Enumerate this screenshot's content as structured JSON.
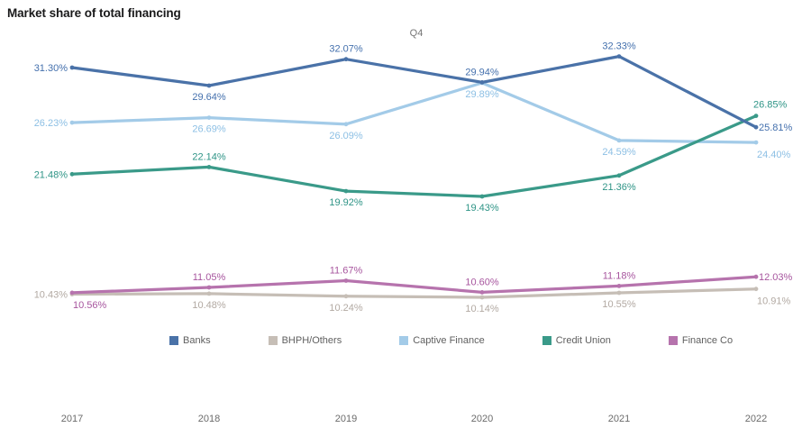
{
  "chart_data": {
    "type": "line",
    "title": "Market share of total financing",
    "subtitle": "Q4",
    "categories": [
      "2017",
      "2018",
      "2019",
      "2020",
      "2021",
      "2022"
    ],
    "ylim": [
      8,
      36
    ],
    "grid": false,
    "legend_position": "bottom",
    "axis_text_color": "#6b6b6b",
    "series": [
      {
        "name": "Banks",
        "color": "#4a72a8",
        "label_color": "#4470ad",
        "values": [
          31.3,
          29.64,
          32.07,
          29.94,
          32.33,
          25.81
        ],
        "labels": [
          "31.30%",
          "29.64%",
          "32.07%",
          "29.94%",
          "32.33%",
          "25.81%"
        ],
        "label_pos": [
          "left",
          "below",
          "above",
          "above",
          "above",
          "right"
        ]
      },
      {
        "name": "BHPH/Others",
        "color": "#c6beb6",
        "label_color": "#b2a9a2",
        "values": [
          10.43,
          10.48,
          10.24,
          10.14,
          10.55,
          10.91
        ],
        "labels": [
          "10.43%",
          "10.48%",
          "10.24%",
          "10.14%",
          "10.55%",
          "10.91%"
        ],
        "label_pos": [
          "left",
          "below",
          "below",
          "below",
          "below",
          "below-right"
        ]
      },
      {
        "name": "Captive Finance",
        "color": "#a3cbe8",
        "label_color": "#8cbfe4",
        "values": [
          26.23,
          26.69,
          26.09,
          29.89,
          24.59,
          24.4
        ],
        "labels": [
          "26.23%",
          "26.69%",
          "26.09%",
          "29.89%",
          "24.59%",
          "24.40%"
        ],
        "label_pos": [
          "left",
          "below",
          "below",
          "below",
          "below",
          "below-right"
        ]
      },
      {
        "name": "Credit Union",
        "color": "#3a9a89",
        "label_color": "#2e9486",
        "values": [
          21.48,
          22.14,
          19.92,
          19.43,
          21.36,
          26.85
        ],
        "labels": [
          "21.48%",
          "22.14%",
          "19.92%",
          "19.43%",
          "21.36%",
          "26.85%"
        ],
        "label_pos": [
          "left",
          "above",
          "below",
          "below",
          "below",
          "above-right"
        ]
      },
      {
        "name": "Finance Co",
        "color": "#b673ad",
        "label_color": "#a7559e",
        "values": [
          10.56,
          11.05,
          11.67,
          10.6,
          11.18,
          12.03
        ],
        "labels": [
          "10.56%",
          "11.05%",
          "11.67%",
          "10.60%",
          "11.18%",
          "12.03%"
        ],
        "label_pos": [
          "below-right",
          "above",
          "above",
          "above",
          "above",
          "right"
        ]
      }
    ]
  }
}
